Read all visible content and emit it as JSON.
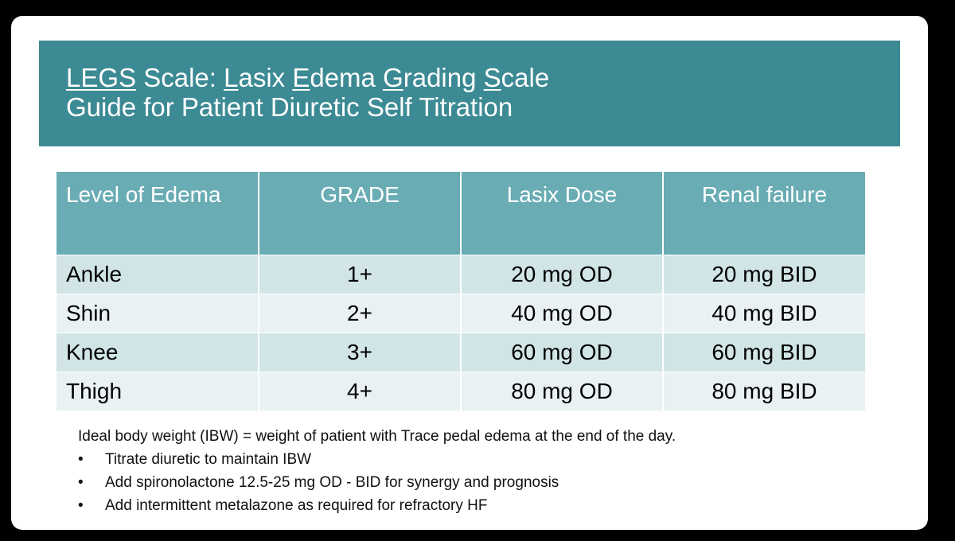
{
  "slide": {
    "title": {
      "line1_parts": [
        {
          "text": "LEGS",
          "underline": true
        },
        {
          "text": " Scale: ",
          "underline": false
        },
        {
          "text": "L",
          "underline": true
        },
        {
          "text": "asix ",
          "underline": false
        },
        {
          "text": "E",
          "underline": true
        },
        {
          "text": "dema ",
          "underline": false
        },
        {
          "text": "G",
          "underline": true
        },
        {
          "text": "rading ",
          "underline": false
        },
        {
          "text": "S",
          "underline": true
        },
        {
          "text": "cale",
          "underline": false
        }
      ],
      "line2": "Guide for Patient Diuretic Self Titration"
    },
    "colors": {
      "banner": "#3c8a94",
      "header_row": "#69acb4",
      "row_odd": "#d1e5e7",
      "row_even": "#e9f1f2"
    },
    "table": {
      "headers": [
        "Level of Edema",
        "GRADE",
        "Lasix Dose",
        "Renal failure"
      ],
      "rows": [
        [
          "Ankle",
          "1+",
          "20 mg OD",
          "20 mg BID"
        ],
        [
          "Shin",
          "2+",
          "40 mg OD",
          "40 mg BID"
        ],
        [
          "Knee",
          "3+",
          "60 mg OD",
          "60 mg BID"
        ],
        [
          "Thigh",
          "4+",
          "80 mg OD",
          "80 mg BID"
        ]
      ]
    },
    "notes": {
      "ibw": "Ideal body weight (IBW) = weight of patient with Trace pedal edema at the end of the day.",
      "bullet_glyph": "•",
      "bullets": [
        "Titrate diuretic to maintain IBW",
        "Add spironolactone 12.5-25 mg OD - BID for synergy and prognosis",
        "Add intermittent metalazone as required for refractory HF"
      ]
    }
  }
}
